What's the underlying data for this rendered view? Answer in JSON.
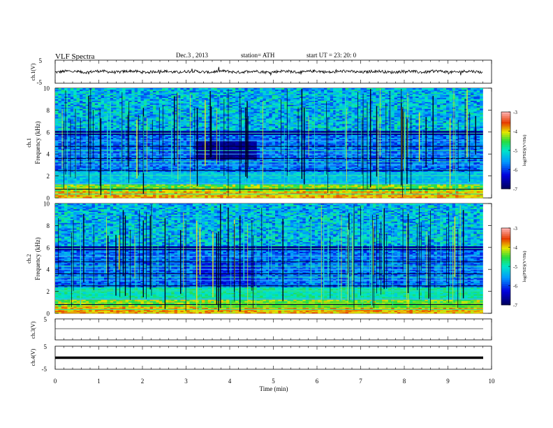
{
  "header": {
    "title": "VLF  Spectra",
    "date": "Dec.3  , 2013",
    "station": "station= ATH",
    "start": "start  UT  =    23: 20: 0"
  },
  "chart_data": [
    {
      "type": "line",
      "name": "ch1-waveform",
      "ylabel": "ch.1(V)",
      "ylim": [
        -5,
        5
      ],
      "yticks": [
        "5",
        "-5"
      ],
      "x_range_min": [
        0,
        9.8
      ],
      "level_V": [
        -0.5,
        0.5
      ],
      "color": "#000000"
    },
    {
      "type": "heatmap",
      "name": "ch1-spectrogram",
      "ylabel": [
        "ch.1",
        "Frequency (kHz)"
      ],
      "ylim": [
        0,
        10
      ],
      "yticks": [
        "0",
        "2",
        "4",
        "6",
        "8",
        "10"
      ],
      "x_range_min": [
        0,
        9.8
      ],
      "colorbar": {
        "label": "log(PSD)(V²/Hz)",
        "ticks": [
          "-3",
          "-4",
          "-5",
          "-6",
          "-7"
        ],
        "range": [
          -7,
          -3
        ]
      },
      "regions": [
        {
          "t": [
            3.25,
            4.6
          ],
          "f": [
            3.5,
            5.3
          ],
          "note": "quieter band"
        }
      ]
    },
    {
      "type": "heatmap",
      "name": "ch2-spectrogram",
      "ylabel": [
        "ch.2",
        "Frequency (kHz)"
      ],
      "ylim": [
        0,
        10
      ],
      "yticks": [
        "0",
        "2",
        "4",
        "6",
        "8",
        "10"
      ],
      "x_range_min": [
        0,
        9.8
      ],
      "colorbar": {
        "label": "log(PSD)(V²/Hz)",
        "ticks": [
          "-3",
          "-4",
          "-5",
          "-6",
          "-7"
        ],
        "range": [
          -7,
          -3
        ]
      }
    },
    {
      "type": "line",
      "name": "ch3-waveform",
      "ylabel": "ch.3(V)",
      "yticks": [
        "5",
        "-5"
      ],
      "ylim": [
        -5,
        5
      ],
      "x_range_min": [
        0,
        9.8
      ],
      "level_V": 0
    },
    {
      "type": "line",
      "name": "ch4-waveform",
      "ylabel": "ch.4(V)",
      "yticks": [
        "5",
        "-5"
      ],
      "ylim": [
        -5,
        5
      ],
      "x_range_min": [
        0,
        9.8
      ],
      "level_V": 0
    }
  ],
  "xaxis": {
    "label": "Time  (min)",
    "ticks": [
      "0",
      "1",
      "2",
      "3",
      "4",
      "5",
      "6",
      "7",
      "8",
      "9",
      "10"
    ],
    "xlim": [
      0,
      10
    ]
  },
  "colors": {
    "low": "#000080",
    "mid": "#00c8ff",
    "green": "#00d060",
    "yellow": "#e8e800",
    "red": "#d02020",
    "high": "#ff9090"
  }
}
